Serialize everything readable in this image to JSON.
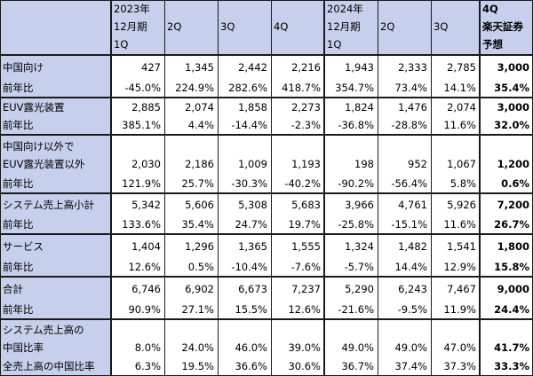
{
  "headers": [
    {
      "lines": [
        "2023年",
        "12月期",
        "1Q"
      ],
      "bold": false
    },
    {
      "lines": [
        "",
        "2Q",
        ""
      ],
      "bold": false
    },
    {
      "lines": [
        "",
        "3Q",
        ""
      ],
      "bold": false
    },
    {
      "lines": [
        "",
        "4Q",
        ""
      ],
      "bold": false
    },
    {
      "lines": [
        "2024年",
        "12月期",
        "1Q"
      ],
      "bold": false
    },
    {
      "lines": [
        "",
        "2Q",
        ""
      ],
      "bold": false
    },
    {
      "lines": [
        "",
        "3Q",
        ""
      ],
      "bold": false
    },
    {
      "lines": [
        "4Q",
        "楽天証券",
        "予想"
      ],
      "bold": true
    }
  ],
  "groups": [
    {
      "label": [
        "中国向け"
      ],
      "values": [
        "427",
        "1,345",
        "2,442",
        "2,216",
        "1,943",
        "2,333",
        "2,785",
        "3,000"
      ],
      "yoy_label": "前年比",
      "yoy": [
        "-45.0%",
        "224.9%",
        "282.6%",
        "418.7%",
        "354.7%",
        "73.4%",
        "14.1%",
        "35.4%"
      ]
    },
    {
      "label": [
        "EUV露光装置"
      ],
      "values": [
        "2,885",
        "2,074",
        "1,858",
        "2,273",
        "1,824",
        "1,476",
        "2,074",
        "3,000"
      ],
      "yoy_label": "前年比",
      "yoy": [
        "385.1%",
        "4.4%",
        "-14.4%",
        "-2.3%",
        "-36.8%",
        "-28.8%",
        "11.6%",
        "32.0%"
      ]
    },
    {
      "label": [
        "中国向け以外で",
        "EUV露光装置以外"
      ],
      "values": [
        "2,030",
        "2,186",
        "1,009",
        "1,193",
        "198",
        "952",
        "1,067",
        "1,200"
      ],
      "yoy_label": "前年比",
      "yoy": [
        "121.9%",
        "25.7%",
        "-30.3%",
        "-40.2%",
        "-90.2%",
        "-56.4%",
        "5.8%",
        "0.6%"
      ]
    },
    {
      "label": [
        "システム売上高小計"
      ],
      "values": [
        "5,342",
        "5,606",
        "5,308",
        "5,683",
        "3,966",
        "4,761",
        "5,926",
        "7,200"
      ],
      "yoy_label": "前年比",
      "yoy": [
        "133.6%",
        "35.4%",
        "24.7%",
        "19.7%",
        "-25.8%",
        "-15.1%",
        "11.6%",
        "26.7%"
      ]
    },
    {
      "label": [
        "サービス"
      ],
      "values": [
        "1,404",
        "1,296",
        "1,365",
        "1,555",
        "1,324",
        "1,482",
        "1,541",
        "1,800"
      ],
      "yoy_label": "前年比",
      "yoy": [
        "12.6%",
        "0.5%",
        "-10.4%",
        "-7.6%",
        "-5.7%",
        "14.4%",
        "12.9%",
        "15.8%"
      ]
    },
    {
      "label": [
        "合計"
      ],
      "values": [
        "6,746",
        "6,902",
        "6,673",
        "7,237",
        "5,290",
        "6,243",
        "7,467",
        "9,000"
      ],
      "yoy_label": "前年比",
      "yoy": [
        "90.9%",
        "27.1%",
        "15.5%",
        "12.6%",
        "-21.6%",
        "-9.5%",
        "11.9%",
        "24.4%"
      ]
    },
    {
      "label": [
        "システム売上高の",
        "中国比率"
      ],
      "values": [
        "8.0%",
        "24.0%",
        "46.0%",
        "39.0%",
        "49.0%",
        "49.0%",
        "47.0%",
        "41.7%"
      ],
      "yoy_label": "全売上高の中国比率",
      "yoy": [
        "6.3%",
        "19.5%",
        "36.6%",
        "30.6%",
        "36.7%",
        "37.4%",
        "37.3%",
        "33.3%"
      ]
    }
  ]
}
